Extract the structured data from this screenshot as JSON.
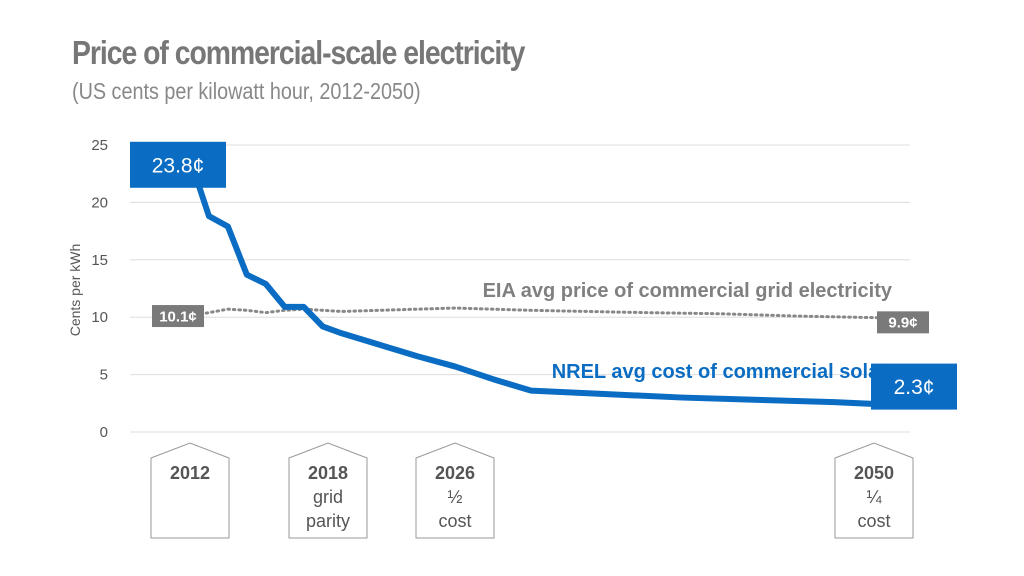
{
  "chart_data": {
    "type": "line",
    "title": "Price of commercial-scale electricity",
    "subtitle": "(US cents per kilowatt hour, 2012-2050)",
    "ylabel": "Cents per kWh",
    "xlabel": "",
    "ylim": [
      0,
      25
    ],
    "xlim": [
      2012,
      2050
    ],
    "yticks": [
      0,
      5,
      10,
      15,
      20,
      25
    ],
    "grid": true,
    "series": [
      {
        "name": "EIA avg price of commercial grid electricity",
        "style": "dotted",
        "color": "#888888",
        "x": [
          2012,
          2013,
          2014,
          2015,
          2016,
          2017,
          2018,
          2019,
          2020,
          2022,
          2024,
          2026,
          2028,
          2030,
          2033,
          2036,
          2040,
          2044,
          2047,
          2050
        ],
        "y": [
          10.1,
          10.4,
          10.7,
          10.6,
          10.4,
          10.6,
          10.7,
          10.6,
          10.5,
          10.6,
          10.7,
          10.8,
          10.7,
          10.6,
          10.5,
          10.4,
          10.3,
          10.1,
          10.0,
          9.9
        ],
        "start_label": "10.1¢",
        "end_label": "9.9¢"
      },
      {
        "name": "NREL avg cost of commercial solar",
        "style": "solid",
        "color": "#0a6cc2",
        "x": [
          2012,
          2013,
          2014,
          2015,
          2016,
          2017,
          2018,
          2019,
          2020,
          2022,
          2024,
          2026,
          2028,
          2030,
          2034,
          2038,
          2042,
          2046,
          2050
        ],
        "y": [
          23.8,
          18.8,
          17.9,
          13.7,
          12.9,
          10.9,
          10.9,
          9.2,
          8.6,
          7.6,
          6.6,
          5.7,
          4.6,
          3.6,
          3.3,
          3.0,
          2.8,
          2.6,
          2.3
        ],
        "start_label": "23.8¢",
        "end_label": "2.3¢"
      }
    ],
    "milestones": [
      {
        "year": 2012,
        "label": "2012",
        "lines": []
      },
      {
        "year": 2018,
        "label": "2018",
        "lines": [
          "grid",
          "parity"
        ]
      },
      {
        "year": 2026,
        "label": "2026",
        "lines": [
          "½",
          "cost"
        ]
      },
      {
        "year": 2050,
        "label": "2050",
        "lines": [
          "¼",
          "cost"
        ]
      }
    ]
  }
}
